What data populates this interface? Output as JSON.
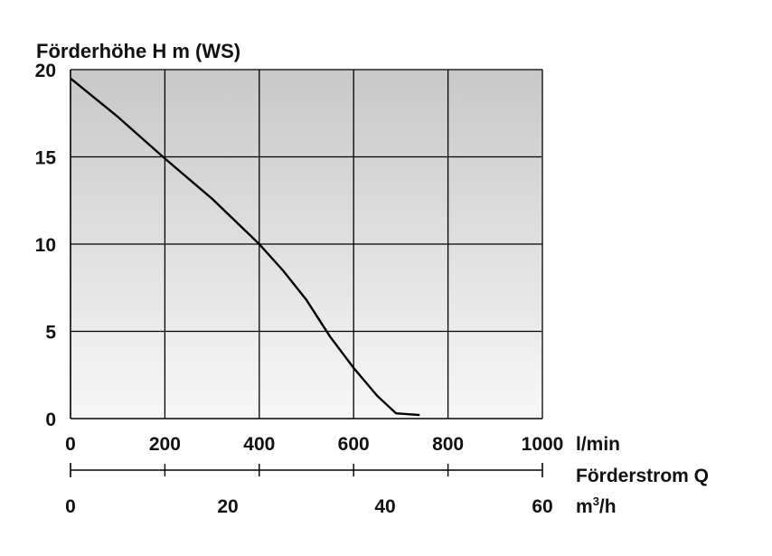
{
  "chart_data": {
    "type": "line",
    "title": "Förderhöhe H m (WS)",
    "y_ticks": [
      "0",
      "5",
      "10",
      "15",
      "20"
    ],
    "y_tick_values": [
      0,
      5,
      10,
      15,
      20
    ],
    "ylim": [
      0,
      20
    ],
    "x_ticks_lmin": [
      "0",
      "200",
      "400",
      "600",
      "800",
      "1000"
    ],
    "x_tick_values_lmin": [
      0,
      200,
      400,
      600,
      800,
      1000
    ],
    "xlim": [
      0,
      1000
    ],
    "x_unit_lmin": "l/min",
    "secondary_axis_label": "Förderstrom Q",
    "x_ticks_m3h": [
      "0",
      "20",
      "40",
      "60"
    ],
    "x_tick_values_m3h": [
      0,
      20,
      40,
      60
    ],
    "x_unit_m3h_base": "m",
    "x_unit_m3h_sup": "3",
    "x_unit_m3h_tail": "/h",
    "grid": true,
    "series": [
      {
        "x": [
          0,
          100,
          200,
          300,
          400,
          450,
          500,
          550,
          600,
          650,
          690,
          740
        ],
        "y": [
          19.5,
          17.3,
          14.9,
          12.6,
          10.0,
          8.5,
          6.8,
          4.7,
          2.9,
          1.3,
          0.3,
          0.2
        ]
      }
    ]
  },
  "colors": {
    "plot_top": "#c8c8c8",
    "plot_bottom": "#f7f7f7",
    "line": "#000000",
    "text": "#111111"
  }
}
